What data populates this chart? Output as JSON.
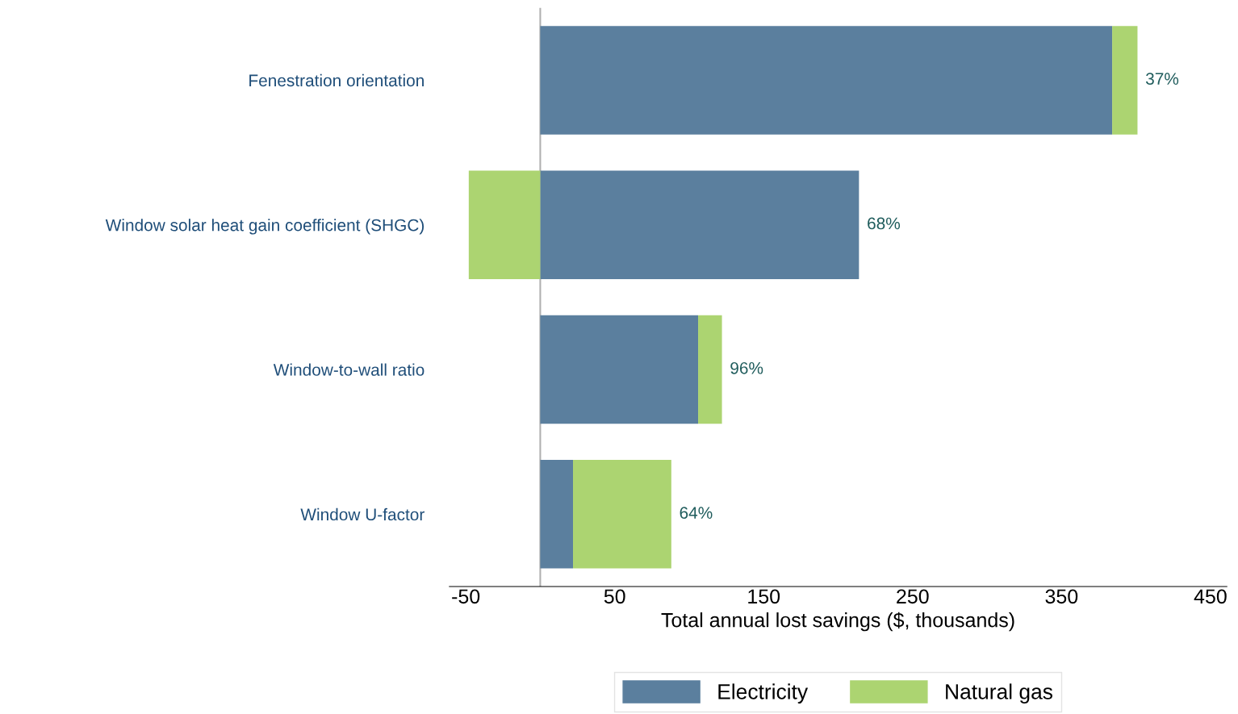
{
  "chart_data": {
    "type": "bar",
    "orientation": "horizontal",
    "stacked": true,
    "categories": [
      "Fenestration orientation",
      "Window solar heat gain coefficient (SHGC)",
      "Window-to-wall ratio",
      "Window U-factor"
    ],
    "series": [
      {
        "name": "Electricity",
        "color": "#5b7f9e",
        "values": [
          384,
          214,
          106,
          22
        ]
      },
      {
        "name": "Natural gas",
        "color": "#acd471",
        "values": [
          17,
          -48,
          16,
          66
        ]
      }
    ],
    "xlabel": "Total annual lost savings ($, thousands)",
    "xlim": [
      -61,
      461
    ],
    "xticks": [
      -50,
      50,
      150,
      250,
      350,
      450
    ],
    "annotations": [
      {
        "text": "37%",
        "x": 401,
        "y": "Fenestration orientation"
      },
      {
        "text": "68%",
        "x": 214,
        "y": "Window solar heat gain coefficient (SHGC)"
      },
      {
        "text": "96%",
        "x": 122,
        "y": "Window-to-wall ratio"
      },
      {
        "text": "64%",
        "x": 88,
        "y": "Window U-factor"
      }
    ],
    "legend": "bottom",
    "grid": false
  }
}
